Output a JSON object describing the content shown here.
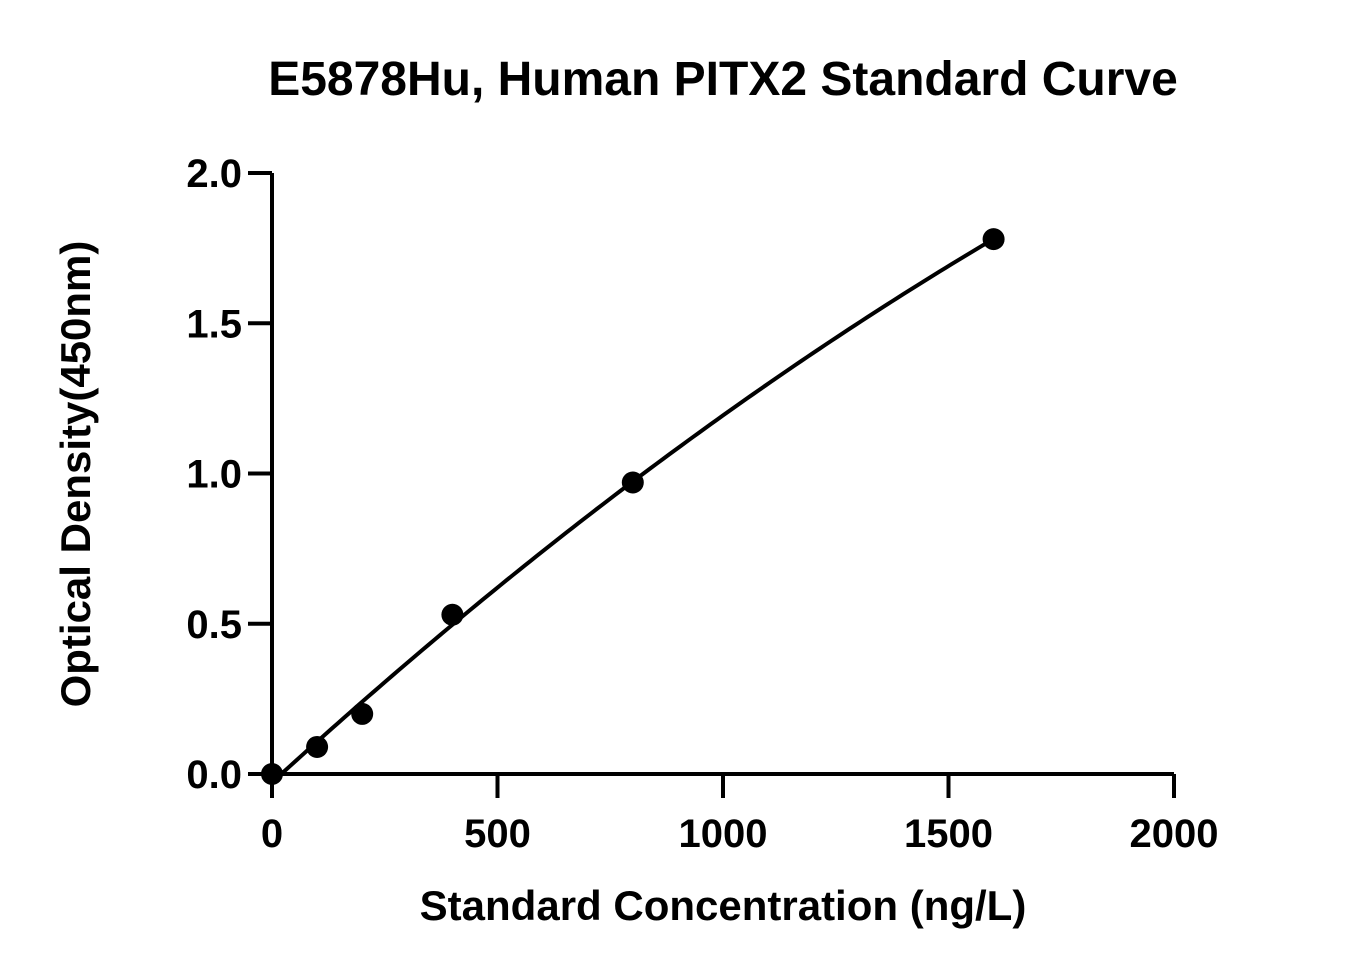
{
  "chart_data": {
    "type": "scatter",
    "title": "E5878Hu, Human PITX2 Standard Curve",
    "xlabel": "Standard Concentration (ng/L)",
    "ylabel": "Optical Density(450nm)",
    "xlim": [
      0,
      2000
    ],
    "ylim": [
      0,
      2.0
    ],
    "x_ticks": [
      0,
      500,
      1000,
      1500,
      2000
    ],
    "x_tick_labels": [
      "0",
      "500",
      "1000",
      "1500",
      "2000"
    ],
    "y_ticks": [
      0,
      0.5,
      1.0,
      1.5,
      2.0
    ],
    "y_tick_labels": [
      "0.0",
      "0.5",
      "1.0",
      "1.5",
      "2.0"
    ],
    "grid": false,
    "series": [
      {
        "points": [
          {
            "x": 0,
            "y": 0.0
          },
          {
            "x": 100,
            "y": 0.09
          },
          {
            "x": 200,
            "y": 0.2
          },
          {
            "x": 400,
            "y": 0.53
          },
          {
            "x": 800,
            "y": 0.97
          },
          {
            "x": 1600,
            "y": 1.78
          }
        ],
        "fit_curve": true,
        "color": "#000000"
      }
    ]
  }
}
